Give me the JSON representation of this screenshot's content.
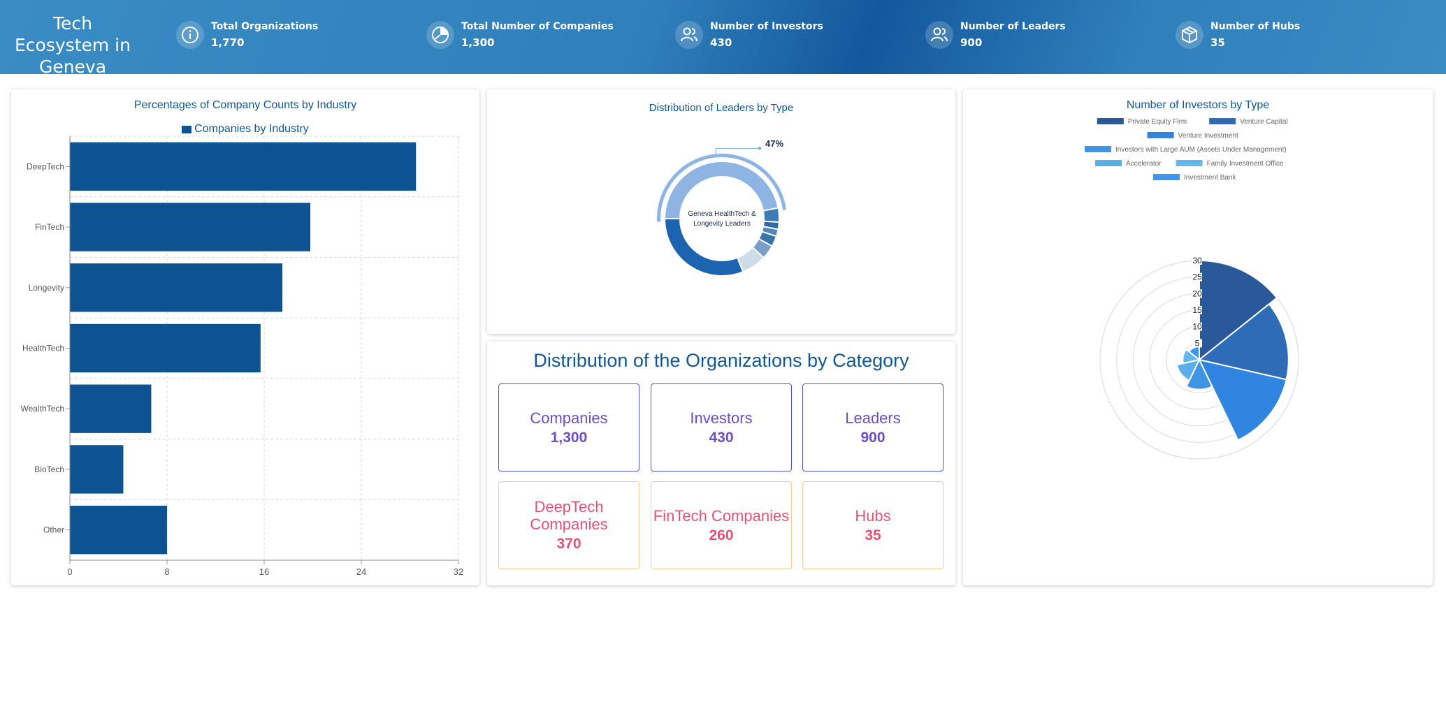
{
  "header": {
    "title": "Tech Ecosystem in Geneva",
    "stats": [
      {
        "label": "Total Organizations",
        "value": "1,770",
        "icon": "info-icon"
      },
      {
        "label": "Total Number of Companies",
        "value": "1,300",
        "icon": "pie-chart-icon"
      },
      {
        "label": "Number of Investors",
        "value": "430",
        "icon": "users-icon"
      },
      {
        "label": "Number of Leaders",
        "value": "900",
        "icon": "users-icon"
      },
      {
        "label": "Number of Hubs",
        "value": "35",
        "icon": "box-icon"
      }
    ]
  },
  "colors": {
    "bar": "#0e5391",
    "title": "#0f5897",
    "purple_box": "#4d50c8",
    "orange_box": "#f7c995",
    "purple_text": "#6b4fc8",
    "orange_text": "#e55274"
  },
  "chart_data": [
    {
      "type": "bar",
      "orientation": "horizontal",
      "title": "Percentages of Company Counts by Industry",
      "legend": [
        "Companies by Industry"
      ],
      "legend_placement": "top",
      "categories": [
        "DeepTech",
        "FinTech",
        "Longevity",
        "HealthTech",
        "WealthTech",
        "BioTech",
        "Other"
      ],
      "values": [
        28.5,
        19.8,
        17.5,
        15.7,
        6.7,
        4.4,
        8.0
      ],
      "xlim": [
        0,
        32
      ],
      "xticks": [
        0,
        8,
        16,
        24,
        32
      ],
      "grid": true
    },
    {
      "type": "pie",
      "subtype": "donut",
      "title": "Distribution of Leaders by Type",
      "center_label": "Geneva HealthTech & Longevity Leaders",
      "highlight_label": "47%",
      "values": [
        47,
        4,
        2,
        2,
        3,
        4,
        7,
        31
      ],
      "colors": [
        "#8db4e2",
        "#3c7db8",
        "#2d6aa3",
        "#4e86b8",
        "#3a74ab",
        "#7a9fc6",
        "#d0dbe8",
        "#1c64b0"
      ]
    },
    {
      "type": "polar-area",
      "title": "Number of Investors by Type",
      "legend_placement": "top",
      "series": [
        {
          "name": "Private Equity Firm",
          "value": 30,
          "color": "#2a5999"
        },
        {
          "name": "Venture Capital",
          "value": 27,
          "color": "#2e6cb7"
        },
        {
          "name": "Venture Investment",
          "value": 27,
          "color": "#3085e0"
        },
        {
          "name": "Investors with Large AUM (Assets Under Management)",
          "value": 9,
          "color": "#3f95e4"
        },
        {
          "name": "Accelerator",
          "value": 7,
          "color": "#5aaeea"
        },
        {
          "name": "Family Investment Office",
          "value": 5,
          "color": "#64b7ee"
        },
        {
          "name": "Investment Bank",
          "value": 4,
          "color": "#3d97f0"
        }
      ],
      "rlim": [
        0,
        30
      ],
      "rticks": [
        5,
        10,
        15,
        20,
        25,
        30
      ]
    }
  ],
  "categories_panel": {
    "title": "Distribution of the Organizations by Category",
    "boxes": [
      {
        "name": "Companies",
        "value": "1,300",
        "style": "purple"
      },
      {
        "name": "Investors",
        "value": "430",
        "style": "purple"
      },
      {
        "name": "Leaders",
        "value": "900",
        "style": "purple"
      },
      {
        "name": "DeepTech Companies",
        "value": "370",
        "style": "orange"
      },
      {
        "name": "FinTech Companies",
        "value": "260",
        "style": "orange"
      },
      {
        "name": "Hubs",
        "value": "35",
        "style": "orange"
      }
    ]
  }
}
